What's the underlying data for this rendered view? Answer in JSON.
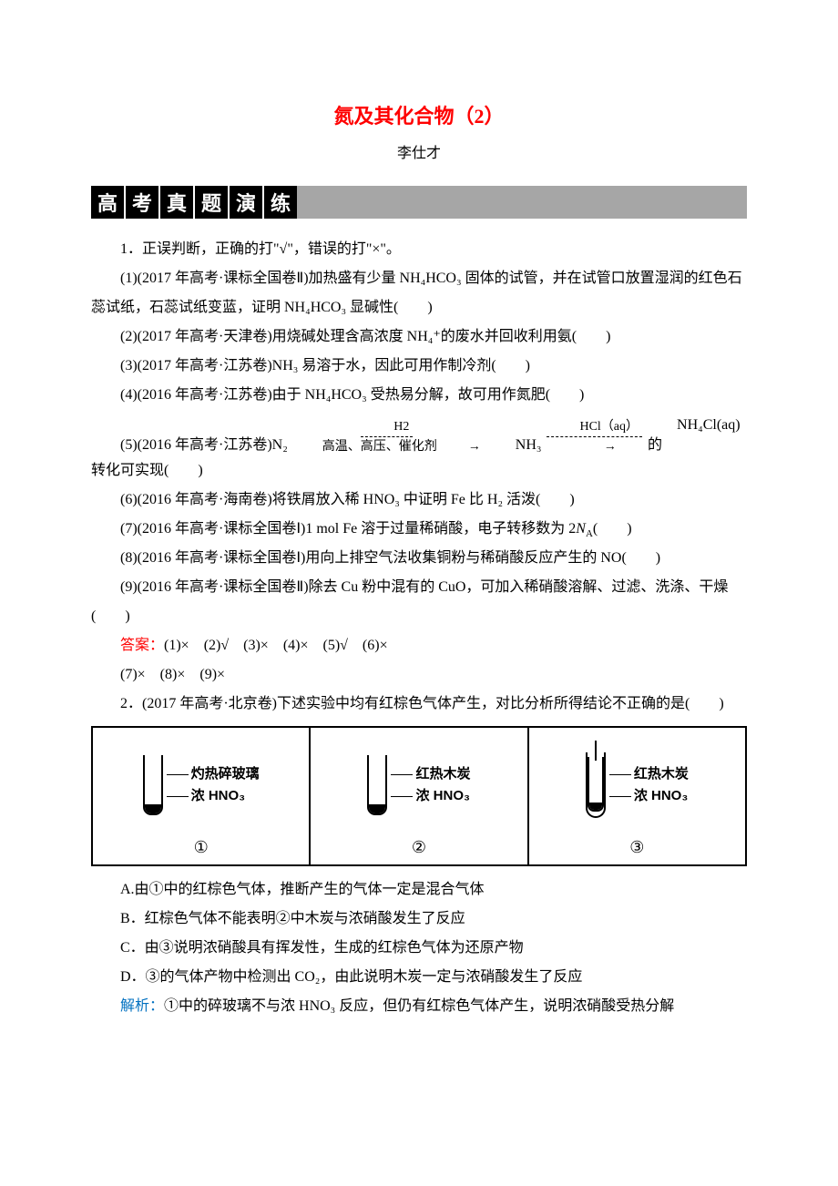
{
  "title": {
    "text": "氮及其化合物（2）",
    "color": "#ff0000"
  },
  "author": "李仕才",
  "banner": {
    "cells": [
      "高",
      "考",
      "真",
      "题",
      "演",
      "练"
    ],
    "cell_bg": "#000000",
    "cell_fg": "#ffffff",
    "fill_bg": "#a6a6a6"
  },
  "q1_intro": "1．正误判断，正确的打\"√\"，错误的打\"×\"。",
  "q1_items": [
    "(1)(2017 年高考·课标全国卷Ⅱ)加热盛有少量 NH₄HCO₃ 固体的试管，并在试管口放置湿润的红色石蕊试纸，石蕊试纸变蓝，证明 NH₄HCO₃ 显碱性(　　)",
    "(2)(2017 年高考·天津卷)用烧碱处理含高浓度 NH₄⁺的废水并回收利用氨(　　)",
    "(3)(2017 年高考·江苏卷)NH₃ 易溶于水，因此可用作制冷剂(　　)",
    "(4)(2016 年高考·江苏卷)由于 NH₄HCO₃ 受热易分解，故可用作氮肥(　　)"
  ],
  "q1_5_prefix": "(5)(2016 年高考·江苏卷)N₂",
  "q1_5_arrow1_top": "H2",
  "q1_5_arrow1_bot": "高温、高压、催化剂",
  "q1_5_mid": "NH₃",
  "q1_5_arrow2_top": "HCl（aq）",
  "q1_5_suffix": "NH₄Cl(aq)的",
  "q1_5_tail": "转化可实现(　　)",
  "q1_items2": [
    "(6)(2016 年高考·海南卷)将铁屑放入稀 HNO₃ 中证明 Fe 比 H₂ 活泼(　　)",
    "(7)(2016 年高考·课标全国卷Ⅰ)1 mol Fe 溶于过量稀硝酸，电子转移数为 2",
    "(8)(2016 年高考·课标全国卷Ⅰ)用向上排空气法收集铜粉与稀硝酸反应产生的 NO(　　)",
    "(9)(2016 年高考·课标全国卷Ⅱ)除去 Cu 粉中混有的 CuO，可加入稀硝酸溶解、过滤、洗涤、干燥(　　)"
  ],
  "q1_7_na": "N",
  "q1_7_na_sub": "A",
  "q1_7_tail": "(　　)",
  "answer_label": "答案：",
  "answer_line1": "(1)×　(2)√　(3)×　(4)×　(5)√　(6)×",
  "answer_line2": "(7)×　(8)×　(9)×",
  "q2_intro": "2．(2017 年高考·北京卷)下述实验中均有红棕色气体产生，对比分析所得结论不正确的是(　　)",
  "fig": {
    "c1_l1": "灼热碎玻璃",
    "c1_l2": "浓 HNO₃",
    "c2_l1": "红热木炭",
    "c2_l2": "浓 HNO₃",
    "c3_l1": "红热木炭",
    "c3_l2": "浓 HNO₃",
    "nums": [
      "①",
      "②",
      "③"
    ]
  },
  "options": [
    "A.由①中的红棕色气体，推断产生的气体一定是混合气体",
    "B．红棕色气体不能表明②中木炭与浓硝酸发生了反应",
    "C．由③说明浓硝酸具有挥发性，生成的红棕色气体为还原产物",
    "D．③的气体产物中检测出 CO₂，由此说明木炭一定与浓硝酸发生了反应"
  ],
  "analysis_label": "解析：",
  "analysis_text": "①中的碎玻璃不与浓 HNO₃ 反应，但仍有红棕色气体产生，说明浓硝酸受热分解",
  "colors": {
    "answer": "#ff0000",
    "analysis": "#0070c0"
  }
}
